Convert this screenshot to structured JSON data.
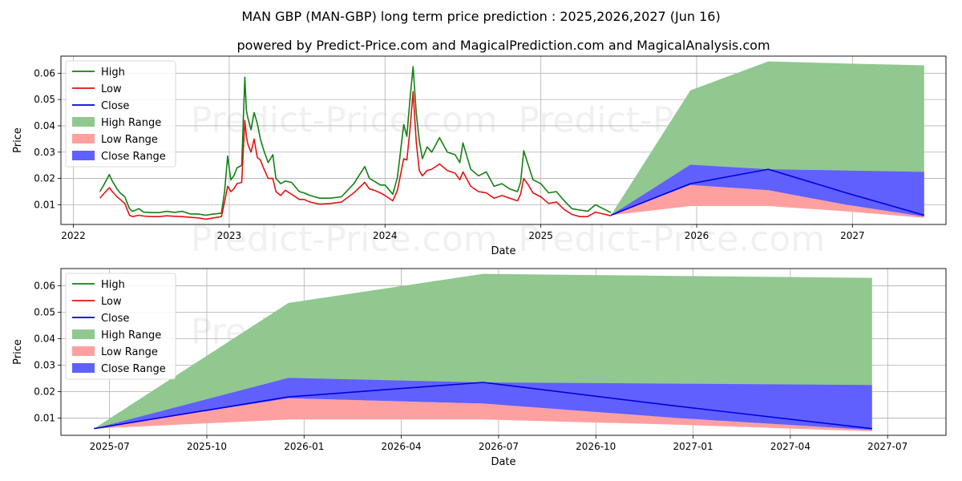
{
  "title": "MAN GBP (MAN-GBP) long term price prediction : 2025,2026,2027 (Jun 16)",
  "subtitle": "powered by Predict-Price.com and MagicalPrediction.com and MagicalAnalysis.com",
  "watermark": "Predict-Price.com",
  "colors": {
    "high": "#138013",
    "low": "#e81010",
    "close": "#0000e0",
    "high_range": "#90c890",
    "low_range": "#ffa0a0",
    "close_range": "#6060ff"
  },
  "chart_data": [
    {
      "type": "line",
      "xlabel": "Date",
      "ylabel": "Price",
      "grid": true,
      "legend": "upper-left",
      "legend_entries": [
        "High",
        "Low",
        "Close",
        "High Range",
        "Low Range",
        "Close Range"
      ],
      "xlim": [
        2021.92,
        2027.6
      ],
      "ylim": [
        0.0025,
        0.0665
      ],
      "x_ticks": [
        2022,
        2023,
        2024,
        2025,
        2026,
        2027
      ],
      "x_tick_labels": [
        "2022",
        "2023",
        "2024",
        "2025",
        "2026",
        "2027"
      ],
      "y_ticks": [
        0.01,
        0.02,
        0.03,
        0.04,
        0.05,
        0.06
      ],
      "y_tick_labels": [
        "0.01",
        "0.02",
        "0.03",
        "0.04",
        "0.05",
        "0.06"
      ],
      "history": {
        "x": [
          2022.17,
          2022.2,
          2022.23,
          2022.25,
          2022.28,
          2022.3,
          2022.33,
          2022.36,
          2022.38,
          2022.42,
          2022.45,
          2022.5,
          2022.55,
          2022.6,
          2022.65,
          2022.7,
          2022.75,
          2022.8,
          2022.85,
          2022.9,
          2022.95,
          2022.97,
          2022.99,
          2023.01,
          2023.03,
          2023.05,
          2023.08,
          2023.1,
          2023.11,
          2023.12,
          2023.14,
          2023.16,
          2023.18,
          2023.2,
          2023.22,
          2023.25,
          2023.28,
          2023.3,
          2023.33,
          2023.36,
          2023.4,
          2023.45,
          2023.48,
          2023.52,
          2023.58,
          2023.65,
          2023.72,
          2023.8,
          2023.87,
          2023.9,
          2023.93,
          2023.97,
          2024.0,
          2024.05,
          2024.08,
          2024.12,
          2024.14,
          2024.16,
          2024.18,
          2024.2,
          2024.22,
          2024.24,
          2024.27,
          2024.3,
          2024.35,
          2024.4,
          2024.45,
          2024.48,
          2024.5,
          2024.55,
          2024.6,
          2024.65,
          2024.7,
          2024.75,
          2024.8,
          2024.85,
          2024.87,
          2024.89,
          2024.92,
          2024.95,
          2025.0,
          2025.05,
          2025.1,
          2025.15,
          2025.2,
          2025.25,
          2025.3,
          2025.35,
          2025.4,
          2025.45
        ],
        "high": [
          0.015,
          0.018,
          0.0215,
          0.019,
          0.016,
          0.0145,
          0.013,
          0.0085,
          0.0075,
          0.0085,
          0.0072,
          0.007,
          0.007,
          0.0075,
          0.0071,
          0.0075,
          0.0065,
          0.0065,
          0.006,
          0.0065,
          0.0068,
          0.015,
          0.0285,
          0.0195,
          0.021,
          0.024,
          0.025,
          0.0585,
          0.046,
          0.043,
          0.0385,
          0.045,
          0.041,
          0.035,
          0.031,
          0.026,
          0.029,
          0.02,
          0.018,
          0.019,
          0.0185,
          0.015,
          0.0145,
          0.0135,
          0.0125,
          0.0125,
          0.013,
          0.018,
          0.0245,
          0.02,
          0.019,
          0.0175,
          0.0175,
          0.014,
          0.0205,
          0.0405,
          0.036,
          0.05,
          0.0625,
          0.045,
          0.0345,
          0.0275,
          0.032,
          0.03,
          0.0355,
          0.03,
          0.029,
          0.026,
          0.0335,
          0.0235,
          0.021,
          0.0225,
          0.017,
          0.018,
          0.016,
          0.015,
          0.0185,
          0.0305,
          0.025,
          0.0195,
          0.018,
          0.0145,
          0.015,
          0.0115,
          0.0085,
          0.008,
          0.0075,
          0.01,
          0.0085,
          0.007
        ],
        "low": [
          0.0125,
          0.0145,
          0.0165,
          0.015,
          0.013,
          0.012,
          0.0105,
          0.006,
          0.0055,
          0.006,
          0.0057,
          0.0055,
          0.0055,
          0.0058,
          0.0056,
          0.0055,
          0.0052,
          0.005,
          0.0045,
          0.005,
          0.0055,
          0.011,
          0.017,
          0.015,
          0.016,
          0.018,
          0.0185,
          0.042,
          0.036,
          0.033,
          0.03,
          0.035,
          0.028,
          0.027,
          0.024,
          0.02,
          0.02,
          0.015,
          0.0135,
          0.0155,
          0.014,
          0.012,
          0.012,
          0.011,
          0.0102,
          0.0105,
          0.011,
          0.0145,
          0.0185,
          0.016,
          0.0155,
          0.0145,
          0.0135,
          0.0115,
          0.0155,
          0.0275,
          0.027,
          0.0385,
          0.053,
          0.034,
          0.023,
          0.021,
          0.023,
          0.0235,
          0.0255,
          0.023,
          0.022,
          0.0195,
          0.0225,
          0.017,
          0.015,
          0.0145,
          0.0125,
          0.0135,
          0.0125,
          0.0115,
          0.014,
          0.02,
          0.0175,
          0.0145,
          0.013,
          0.0105,
          0.011,
          0.0082,
          0.0063,
          0.0055,
          0.0055,
          0.0072,
          0.0065,
          0.0058
        ]
      },
      "prediction": {
        "x": [
          2025.45,
          2025.96,
          2026.46,
          2026.96,
          2027.46
        ],
        "high_range_upper": [
          0.006,
          0.0535,
          0.0645,
          0.0637,
          0.063
        ],
        "high_range_lower": [
          0.006,
          0.0175,
          0.021,
          0.022,
          0.0225
        ],
        "low_range_upper": [
          0.006,
          0.0175,
          0.0155,
          0.01,
          0.0055
        ],
        "low_range_lower": [
          0.006,
          0.0095,
          0.0095,
          0.0075,
          0.005
        ],
        "close_range_upper": [
          0.006,
          0.0252,
          0.0235,
          0.023,
          0.0225
        ],
        "close_range_lower": [
          0.006,
          0.0175,
          0.0155,
          0.01,
          0.0055
        ],
        "close": [
          0.006,
          0.018,
          0.0235,
          0.0145,
          0.006
        ]
      }
    },
    {
      "type": "line",
      "xlabel": "Date",
      "ylabel": "Price",
      "grid": true,
      "legend": "upper-left",
      "legend_entries": [
        "High",
        "Low",
        "Close",
        "High Range",
        "Low Range",
        "Close Range"
      ],
      "xlim": [
        2025.375,
        2027.65
      ],
      "ylim": [
        0.0035,
        0.0665
      ],
      "x_ticks": [
        2025.5,
        2025.75,
        2026.0,
        2026.25,
        2026.5,
        2026.75,
        2027.0,
        2027.25,
        2027.5
      ],
      "x_tick_labels": [
        "2025-07",
        "2025-10",
        "2026-01",
        "2026-04",
        "2026-07",
        "2026-10",
        "2027-01",
        "2027-04",
        "2027-07"
      ],
      "y_ticks": [
        0.01,
        0.02,
        0.03,
        0.04,
        0.05,
        0.06
      ],
      "y_tick_labels": [
        "0.01",
        "0.02",
        "0.03",
        "0.04",
        "0.05",
        "0.06"
      ],
      "prediction": {
        "x": [
          2025.46,
          2025.96,
          2026.46,
          2026.96,
          2027.46
        ],
        "high_range_upper": [
          0.006,
          0.0535,
          0.0645,
          0.0637,
          0.063
        ],
        "high_range_lower": [
          0.006,
          0.0175,
          0.021,
          0.022,
          0.0225
        ],
        "low_range_upper": [
          0.006,
          0.0175,
          0.0155,
          0.01,
          0.0055
        ],
        "low_range_lower": [
          0.006,
          0.0095,
          0.0095,
          0.0075,
          0.005
        ],
        "close_range_upper": [
          0.006,
          0.0252,
          0.0235,
          0.023,
          0.0225
        ],
        "close_range_lower": [
          0.006,
          0.0175,
          0.0155,
          0.01,
          0.0055
        ],
        "close": [
          0.006,
          0.018,
          0.0235,
          0.0145,
          0.006
        ]
      }
    }
  ]
}
